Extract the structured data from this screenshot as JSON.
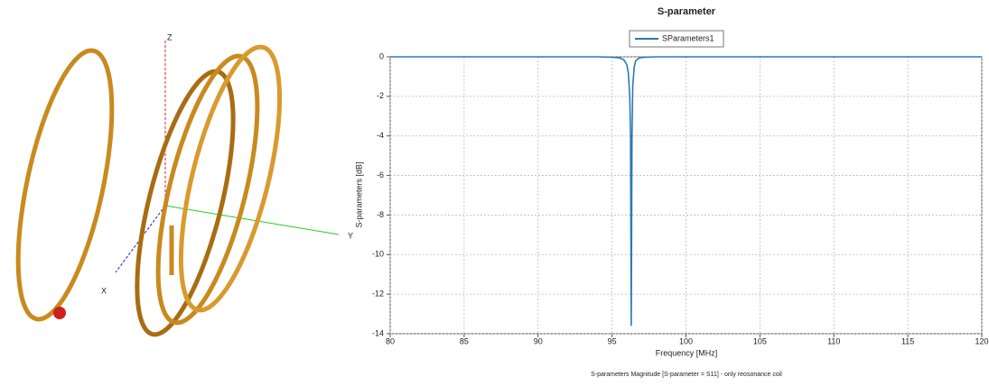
{
  "figure": {
    "axis_labels": [
      "Z",
      "Y",
      "X"
    ]
  },
  "chart_data": {
    "type": "line",
    "title": "S-parameter",
    "x_label": "Frequency [MHz]",
    "y_label": "S-parameters [dB]",
    "caption": "S-parameters Magnitude [S-parameter = S11] - only reosonance coil",
    "x": [
      80,
      94,
      95,
      95.5,
      95.8,
      96.0,
      96.1,
      96.2,
      96.25,
      96.3,
      96.35,
      96.4,
      96.5,
      96.6,
      96.8,
      97,
      98,
      100,
      120
    ],
    "series": [
      {
        "name": "SParameters1",
        "color": "#2a7ab8",
        "values": [
          0,
          0,
          -0.02,
          -0.05,
          -0.15,
          -0.4,
          -0.8,
          -2,
          -4,
          -13.6,
          -4,
          -1.5,
          -0.5,
          -0.2,
          -0.08,
          -0.03,
          0,
          0,
          0
        ]
      }
    ],
    "xlim": [
      80,
      120
    ],
    "xticks": [
      80,
      85,
      90,
      95,
      100,
      105,
      110,
      115,
      120
    ],
    "ylim": [
      -14,
      0
    ],
    "yticks": [
      0,
      -2,
      -4,
      -6,
      -8,
      -10,
      -12,
      -14
    ],
    "grid": true,
    "legend": "top"
  }
}
